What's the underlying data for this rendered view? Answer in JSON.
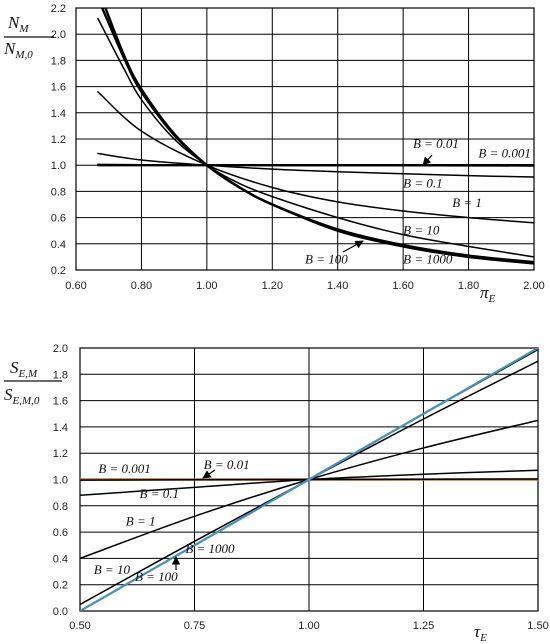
{
  "chart_data": [
    {
      "type": "line",
      "ylabel": {
        "num": "N",
        "num_sub": "M",
        "den": "N",
        "den_sub": "M,0"
      },
      "xlabel": {
        "base": "π",
        "sub": "E"
      },
      "xlim": [
        0.6,
        2.0
      ],
      "ylim": [
        0.2,
        2.2
      ],
      "xticks": [
        "0.60",
        "0.80",
        "1.00",
        "1.20",
        "1.40",
        "1.60",
        "1.80",
        "2.00"
      ],
      "yticks": [
        "0.2",
        "0.4",
        "0.6",
        "0.8",
        "1.0",
        "1.2",
        "1.4",
        "1.6",
        "1.8",
        "2.0",
        "2.2"
      ],
      "grid": true,
      "series": [
        {
          "name": "B = 0.001",
          "x": [
            0.667,
            0.8,
            1.0,
            1.2,
            1.4,
            1.6,
            1.8,
            2.0
          ],
          "y": [
            1.0,
            1.0,
            1.0,
            1.0,
            1.0,
            1.0,
            1.0,
            1.0
          ],
          "color": "#000000"
        },
        {
          "name": "B = 0.01",
          "x": [
            0.667,
            0.8,
            1.0,
            1.2,
            1.4,
            1.6,
            1.8,
            2.0
          ],
          "y": [
            1.006,
            1.003,
            1.0,
            0.998,
            0.997,
            0.996,
            0.995,
            0.994
          ],
          "color": "#000000"
        },
        {
          "name": "B = 0.1",
          "x": [
            0.667,
            0.8,
            1.0,
            1.2,
            1.4,
            1.6,
            1.8,
            2.0
          ],
          "y": [
            1.09,
            1.04,
            1.0,
            0.97,
            0.95,
            0.935,
            0.92,
            0.91
          ],
          "color": "#000000"
        },
        {
          "name": "B = 1",
          "x": [
            0.667,
            0.8,
            1.0,
            1.2,
            1.4,
            1.6,
            1.8,
            2.0
          ],
          "y": [
            1.56,
            1.26,
            1.0,
            0.83,
            0.72,
            0.65,
            0.6,
            0.56
          ],
          "color": "#000000"
        },
        {
          "name": "B = 10",
          "x": [
            0.667,
            0.75,
            0.8,
            0.9,
            1.0,
            1.1,
            1.2,
            1.4,
            1.6,
            1.8,
            2.0
          ],
          "y": [
            2.12,
            1.72,
            1.5,
            1.2,
            1.0,
            0.86,
            0.76,
            0.6,
            0.47,
            0.38,
            0.3
          ],
          "color": "#000000"
        },
        {
          "name": "B = 100",
          "x": [
            0.68,
            0.75,
            0.8,
            0.9,
            1.0,
            1.1,
            1.2,
            1.4,
            1.6,
            1.8,
            2.0
          ],
          "y": [
            2.2,
            1.8,
            1.56,
            1.23,
            1.0,
            0.83,
            0.7,
            0.5,
            0.38,
            0.3,
            0.25
          ],
          "color": "#000000"
        },
        {
          "name": "B = 1000",
          "x": [
            0.69,
            0.75,
            0.8,
            0.9,
            1.0,
            1.1,
            1.2,
            1.4,
            1.6,
            1.8,
            2.0
          ],
          "y": [
            2.2,
            1.82,
            1.58,
            1.24,
            1.0,
            0.83,
            0.7,
            0.51,
            0.39,
            0.31,
            0.26
          ],
          "color": "#000000"
        }
      ],
      "annotations": [
        {
          "text": "B = 0.01",
          "x": 1.63,
          "y": 1.13
        },
        {
          "text": "B = 0.001",
          "x": 1.83,
          "y": 1.06
        },
        {
          "text": "B = 0.1",
          "x": 1.6,
          "y": 0.83
        },
        {
          "text": "B = 1",
          "x": 1.75,
          "y": 0.68
        },
        {
          "text": "B = 10",
          "x": 1.6,
          "y": 0.47
        },
        {
          "text": "B = 100",
          "x": 1.3,
          "y": 0.25
        },
        {
          "text": "B = 1000",
          "x": 1.6,
          "y": 0.25
        }
      ]
    },
    {
      "type": "line",
      "ylabel": {
        "num": "S",
        "num_sub": "E,M",
        "den": "S",
        "den_sub": "E,M,0"
      },
      "xlabel": {
        "base": "τ",
        "sub": "E"
      },
      "xlim": [
        0.5,
        1.5
      ],
      "ylim": [
        0.0,
        2.0
      ],
      "xticks": [
        "0.50",
        "0.75",
        "1.00",
        "1.25",
        "1.50"
      ],
      "yticks": [
        "0.0",
        "0.2",
        "0.4",
        "0.6",
        "0.8",
        "1.0",
        "1.2",
        "1.4",
        "1.6",
        "1.8",
        "2.0"
      ],
      "grid": true,
      "series": [
        {
          "name": "B = 0.001",
          "x": [
            0.5,
            1.0,
            1.5
          ],
          "y": [
            1.0,
            1.0,
            1.0
          ],
          "color": "#c0703a"
        },
        {
          "name": "B = 0.01",
          "x": [
            0.5,
            0.75,
            1.0,
            1.25,
            1.5
          ],
          "y": [
            0.995,
            0.998,
            1.0,
            1.002,
            1.004
          ],
          "color": "#000000"
        },
        {
          "name": "B = 0.1",
          "x": [
            0.5,
            0.75,
            1.0,
            1.25,
            1.5
          ],
          "y": [
            0.88,
            0.94,
            1.0,
            1.04,
            1.07
          ],
          "color": "#000000"
        },
        {
          "name": "B = 1",
          "x": [
            0.5,
            0.75,
            1.0,
            1.25,
            1.5
          ],
          "y": [
            0.4,
            0.72,
            1.0,
            1.24,
            1.45
          ],
          "color": "#000000"
        },
        {
          "name": "B = 10",
          "x": [
            0.5,
            0.75,
            1.0,
            1.25,
            1.5
          ],
          "y": [
            0.05,
            0.53,
            1.0,
            1.46,
            1.9
          ],
          "color": "#000000"
        },
        {
          "name": "B = 100",
          "x": [
            0.5,
            0.75,
            1.0,
            1.25,
            1.5
          ],
          "y": [
            0.0,
            0.5,
            1.0,
            1.5,
            1.99
          ],
          "color": "#000000"
        },
        {
          "name": "B = 1000",
          "x": [
            0.5,
            0.75,
            1.0,
            1.25,
            1.5
          ],
          "y": [
            0.0,
            0.5,
            1.0,
            1.5,
            2.0
          ],
          "color": "#4a90b8"
        }
      ],
      "annotations": [
        {
          "text": "B = 0.001",
          "x": 0.54,
          "y": 1.05
        },
        {
          "text": "B = 0.01",
          "x": 0.77,
          "y": 1.08
        },
        {
          "text": "B = 0.1",
          "x": 0.63,
          "y": 0.86
        },
        {
          "text": "B = 1",
          "x": 0.6,
          "y": 0.65
        },
        {
          "text": "B = 1000",
          "x": 0.73,
          "y": 0.44
        },
        {
          "text": "B = 10",
          "x": 0.53,
          "y": 0.28
        },
        {
          "text": "B = 100",
          "x": 0.62,
          "y": 0.23
        }
      ]
    }
  ]
}
